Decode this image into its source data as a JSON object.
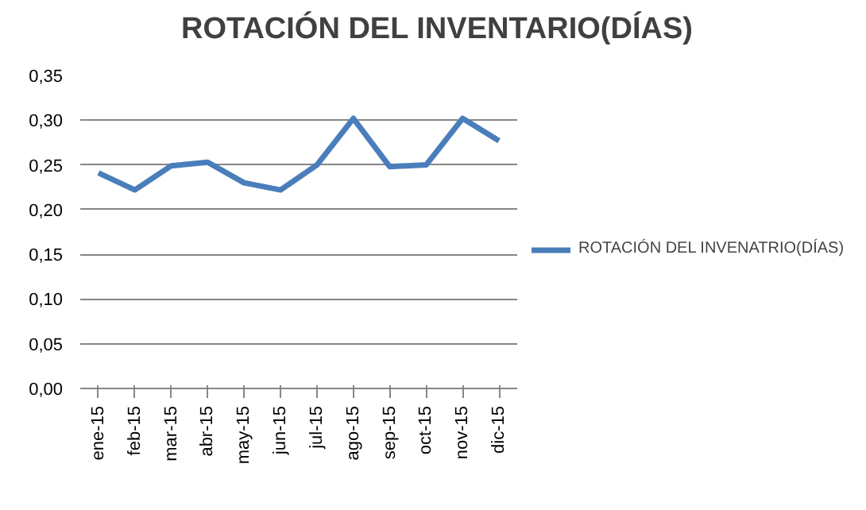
{
  "chart_data": {
    "type": "line",
    "title": "ROTACIÓN DEL INVENTARIO(DÍAS)",
    "categories": [
      "ene-15",
      "feb-15",
      "mar-15",
      "abr-15",
      "may-15",
      "jun-15",
      "jul-15",
      "ago-15",
      "sep-15",
      "oct-15",
      "nov-15",
      "dic-15"
    ],
    "series": [
      {
        "name": "ROTACIÓN DEL INVENATRIO(DÍAS)",
        "color": "#4a7ebb",
        "values": [
          0.241,
          0.222,
          0.249,
          0.253,
          0.23,
          0.222,
          0.25,
          0.302,
          0.248,
          0.25,
          0.302,
          0.277
        ]
      }
    ],
    "ylim": [
      0,
      0.35
    ],
    "yticks": [
      {
        "value": 0,
        "label": "0,00"
      },
      {
        "value": 0.05,
        "label": "0,05"
      },
      {
        "value": 0.1,
        "label": "0,10"
      },
      {
        "value": 0.15,
        "label": "0,15"
      },
      {
        "value": 0.2,
        "label": "0,20"
      },
      {
        "value": 0.25,
        "label": "0,25"
      },
      {
        "value": 0.3,
        "label": "0,30"
      },
      {
        "value": 0.35,
        "label": "0,35"
      }
    ],
    "grid": "y",
    "legend": "right",
    "marker": "none",
    "line_style": "solid"
  }
}
